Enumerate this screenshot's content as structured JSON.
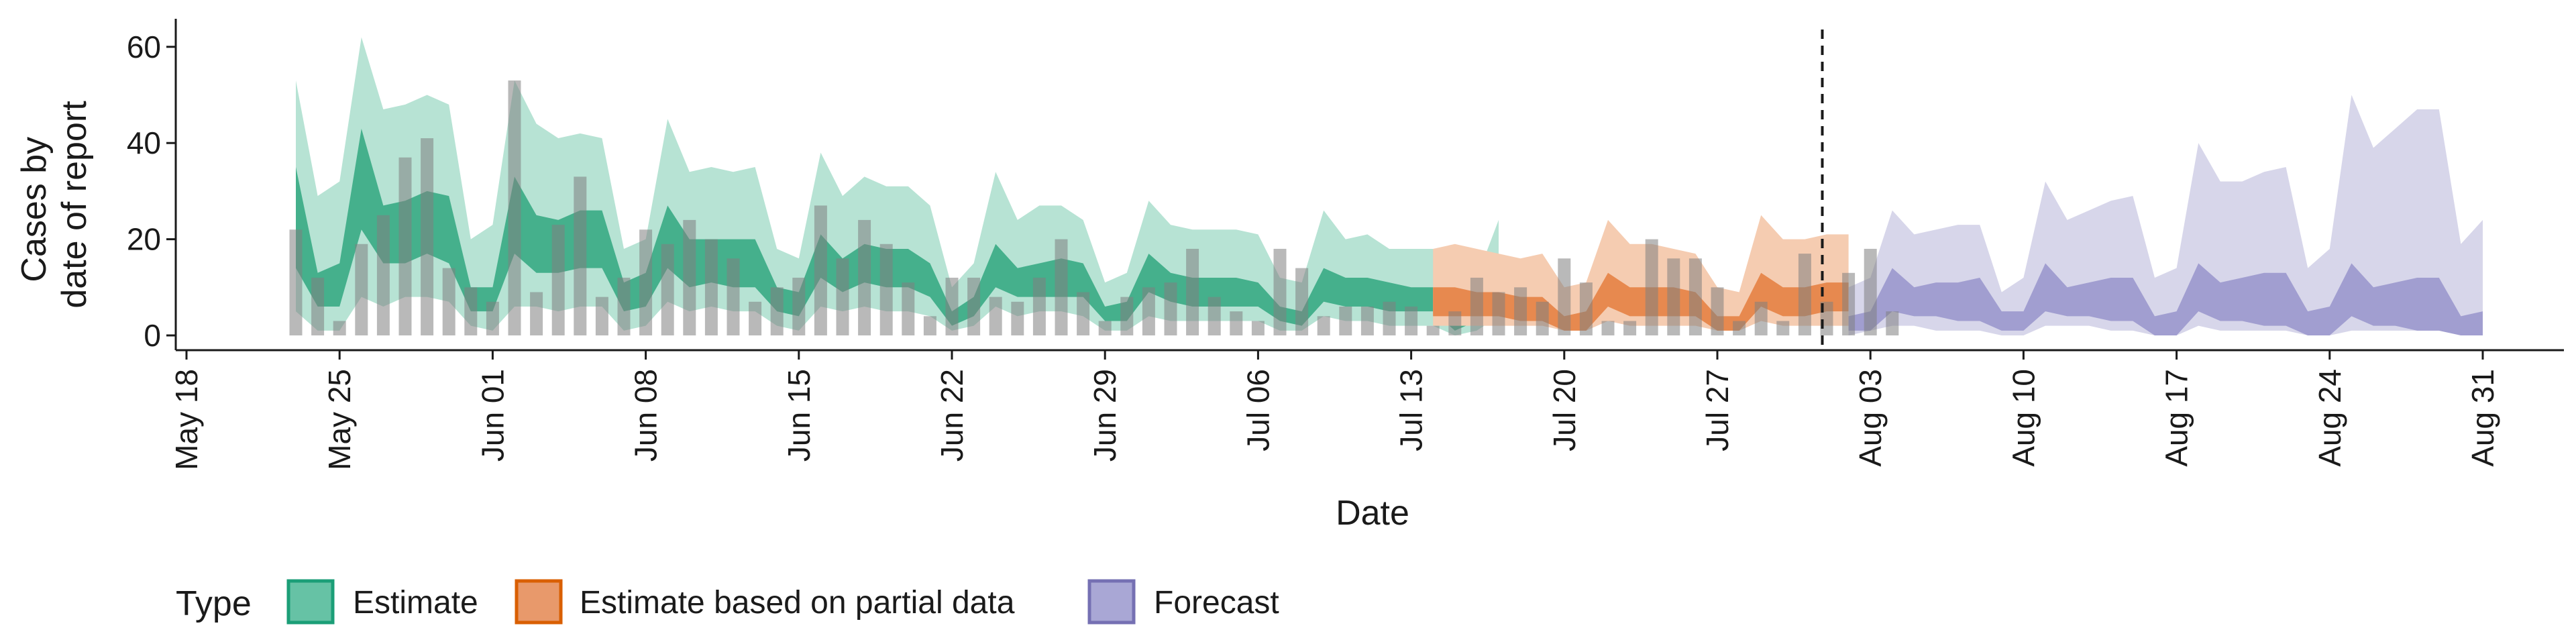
{
  "chart_data": {
    "type": "area",
    "xlabel": "Date",
    "ylabel_lines": [
      "Cases by",
      "date of report"
    ],
    "ylim": [
      0,
      65
    ],
    "y_ticks": [
      0,
      20,
      40,
      60
    ],
    "x_tick_labels": [
      "May 18",
      "May 25",
      "Jun 01",
      "Jun 08",
      "Jun 15",
      "Jun 22",
      "Jun 29",
      "Jul 06",
      "Jul 13",
      "Jul 20",
      "Jul 27",
      "Aug 03",
      "Aug 10",
      "Aug 17",
      "Aug 24",
      "Aug 31"
    ],
    "date_axis": {
      "start_label": "May 18",
      "tick_step_days": 7
    },
    "vline_day": 74.8,
    "legend": {
      "title": "Type",
      "position": "bottom",
      "items": [
        {
          "label": "Estimate",
          "fill": "#66c2a5",
          "stroke": "#1b9e77"
        },
        {
          "label": "Estimate based on partial data",
          "fill": "#e8996b",
          "stroke": "#d95f02"
        },
        {
          "label": "Forecast",
          "fill": "#a9a7d5",
          "stroke": "#7570b3"
        }
      ]
    },
    "colors": {
      "Estimate": "#1b9e77",
      "Estimate based on partial data": "#d95f02",
      "Forecast": "#7570b3",
      "bars": "#7f7f7f"
    },
    "reported_cases": {
      "start_day": 5,
      "values": [
        22,
        12,
        3,
        19,
        25,
        37,
        41,
        14,
        10,
        7,
        53,
        9,
        23,
        33,
        8,
        12,
        22,
        19,
        24,
        20,
        16,
        7,
        10,
        12,
        27,
        16,
        24,
        19,
        11,
        4,
        12,
        12,
        8,
        7,
        12,
        20,
        9,
        3,
        8,
        10,
        11,
        18,
        8,
        5,
        3,
        18,
        14,
        4,
        6,
        6,
        7,
        6,
        2,
        5,
        12,
        9,
        10,
        7,
        16,
        11,
        3,
        3,
        20,
        16,
        16,
        10,
        3,
        7,
        3,
        17,
        7,
        13,
        18,
        5
      ]
    },
    "series": [
      {
        "name": "Estimate",
        "start_day": 5,
        "outer_upper": [
          53,
          29,
          32,
          62,
          47,
          48,
          50,
          48,
          20,
          23,
          53,
          44,
          41,
          42,
          41,
          18,
          20,
          45,
          34,
          35,
          34,
          35,
          18,
          16,
          38,
          29,
          33,
          31,
          31,
          27,
          10,
          15,
          34,
          24,
          27,
          27,
          24,
          11,
          13,
          28,
          23,
          22,
          22,
          22,
          21,
          12,
          11,
          26,
          20,
          21,
          18,
          18,
          18,
          8,
          12,
          24
        ],
        "outer_lower": [
          5,
          1,
          1,
          8,
          6,
          8,
          8,
          7,
          2,
          1,
          6,
          6,
          5,
          6,
          6,
          1,
          2,
          7,
          5,
          6,
          5,
          5,
          2,
          1,
          6,
          5,
          6,
          5,
          5,
          4,
          1,
          2,
          6,
          4,
          5,
          5,
          4,
          1,
          1,
          4,
          3,
          3,
          3,
          3,
          3,
          1,
          1,
          4,
          3,
          3,
          2,
          2,
          2,
          0,
          1,
          4
        ],
        "inner_upper": [
          35,
          13,
          15,
          43,
          27,
          28,
          30,
          29,
          10,
          10,
          33,
          25,
          24,
          26,
          26,
          11,
          13,
          27,
          20,
          20,
          20,
          20,
          10,
          9,
          21,
          16,
          19,
          18,
          18,
          15,
          5,
          8,
          19,
          14,
          15,
          16,
          15,
          6,
          7,
          17,
          13,
          12,
          12,
          12,
          11,
          6,
          5,
          14,
          12,
          12,
          11,
          10,
          10,
          4,
          6,
          13
        ],
        "inner_lower": [
          14,
          6,
          6,
          22,
          15,
          15,
          17,
          15,
          5,
          5,
          17,
          13,
          13,
          14,
          14,
          5,
          6,
          14,
          10,
          11,
          10,
          10,
          5,
          4,
          12,
          9,
          11,
          10,
          10,
          8,
          2,
          4,
          10,
          8,
          8,
          8,
          8,
          3,
          3,
          9,
          7,
          6,
          6,
          6,
          6,
          3,
          2,
          7,
          6,
          6,
          5,
          5,
          5,
          1,
          3,
          7
        ]
      },
      {
        "name": "Estimate based on partial data",
        "start_day": 57,
        "outer_upper": [
          18,
          19,
          18,
          17,
          16,
          17,
          10,
          11,
          24,
          19,
          19,
          18,
          17,
          10,
          9,
          25,
          20,
          20,
          21,
          21
        ],
        "outer_lower": [
          2,
          2,
          2,
          2,
          2,
          2,
          1,
          1,
          3,
          2,
          2,
          2,
          2,
          1,
          1,
          3,
          2,
          2,
          2,
          2
        ],
        "inner_upper": [
          10,
          10,
          9,
          9,
          8,
          8,
          4,
          5,
          13,
          10,
          10,
          10,
          9,
          4,
          4,
          13,
          10,
          10,
          11,
          11
        ],
        "inner_lower": [
          4,
          4,
          4,
          4,
          3,
          3,
          1,
          1,
          6,
          4,
          4,
          4,
          4,
          1,
          1,
          6,
          4,
          4,
          5,
          5
        ]
      },
      {
        "name": "Forecast",
        "start_day": 76,
        "outer_upper": [
          10,
          12,
          26,
          21,
          22,
          23,
          23,
          9,
          12,
          32,
          24,
          26,
          28,
          29,
          12,
          14,
          40,
          32,
          32,
          34,
          35,
          14,
          18,
          50,
          39,
          43,
          47,
          47,
          19,
          24
        ],
        "outer_lower": [
          0,
          1,
          2,
          2,
          1,
          1,
          1,
          0,
          0,
          2,
          2,
          2,
          1,
          1,
          0,
          0,
          2,
          1,
          1,
          1,
          1,
          0,
          0,
          1,
          1,
          1,
          1,
          1,
          0,
          0
        ],
        "inner_upper": [
          4,
          5,
          14,
          10,
          11,
          11,
          12,
          5,
          5,
          15,
          10,
          11,
          12,
          12,
          4,
          5,
          15,
          11,
          12,
          13,
          13,
          5,
          6,
          15,
          10,
          11,
          12,
          12,
          4,
          5
        ],
        "inner_lower": [
          1,
          1,
          5,
          4,
          4,
          3,
          3,
          1,
          1,
          5,
          4,
          4,
          3,
          3,
          0,
          0,
          5,
          3,
          3,
          2,
          2,
          0,
          0,
          4,
          2,
          2,
          1,
          1,
          0,
          0
        ]
      }
    ]
  }
}
